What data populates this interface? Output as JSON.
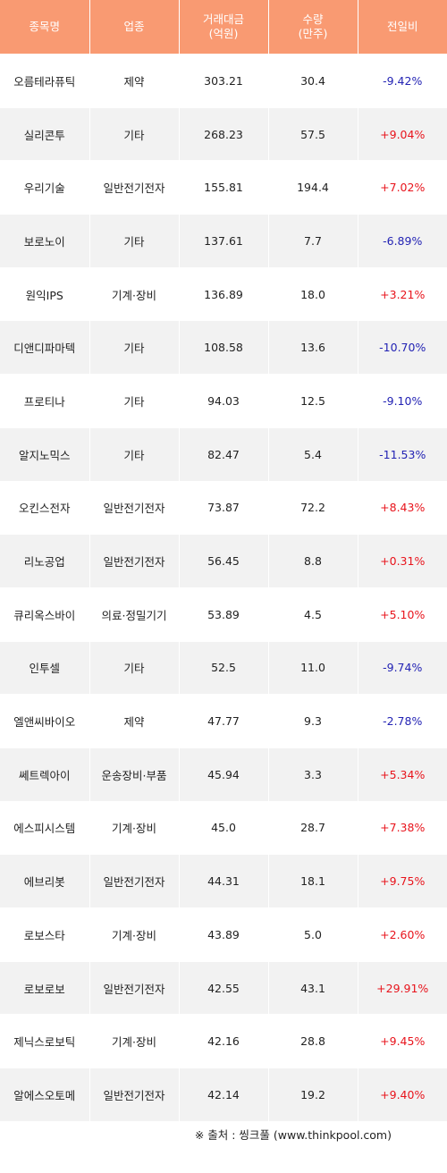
{
  "headers": {
    "name": "종목명",
    "sector": "업종",
    "amount_line1": "거래대금",
    "amount_line2": "(억원)",
    "volume_line1": "수량",
    "volume_line2": "(만주)",
    "change": "전일비"
  },
  "rows": [
    {
      "name": "오름테라퓨틱",
      "sector": "제약",
      "amount": "303.21",
      "volume": "30.4",
      "change": "-9.42%"
    },
    {
      "name": "실리콘투",
      "sector": "기타",
      "amount": "268.23",
      "volume": "57.5",
      "change": "+9.04%"
    },
    {
      "name": "우리기술",
      "sector": "일반전기전자",
      "amount": "155.81",
      "volume": "194.4",
      "change": "+7.02%"
    },
    {
      "name": "보로노이",
      "sector": "기타",
      "amount": "137.61",
      "volume": "7.7",
      "change": "-6.89%"
    },
    {
      "name": "원익IPS",
      "sector": "기계·장비",
      "amount": "136.89",
      "volume": "18.0",
      "change": "+3.21%"
    },
    {
      "name": "디앤디파마텍",
      "sector": "기타",
      "amount": "108.58",
      "volume": "13.6",
      "change": "-10.70%"
    },
    {
      "name": "프로티나",
      "sector": "기타",
      "amount": "94.03",
      "volume": "12.5",
      "change": "-9.10%"
    },
    {
      "name": "알지노믹스",
      "sector": "기타",
      "amount": "82.47",
      "volume": "5.4",
      "change": "-11.53%"
    },
    {
      "name": "오킨스전자",
      "sector": "일반전기전자",
      "amount": "73.87",
      "volume": "72.2",
      "change": "+8.43%"
    },
    {
      "name": "리노공업",
      "sector": "일반전기전자",
      "amount": "56.45",
      "volume": "8.8",
      "change": "+0.31%"
    },
    {
      "name": "큐리옥스바이",
      "sector": "의료·정밀기기",
      "amount": "53.89",
      "volume": "4.5",
      "change": "+5.10%"
    },
    {
      "name": "인투셀",
      "sector": "기타",
      "amount": "52.5",
      "volume": "11.0",
      "change": "-9.74%"
    },
    {
      "name": "엘앤씨바이오",
      "sector": "제약",
      "amount": "47.77",
      "volume": "9.3",
      "change": "-2.78%"
    },
    {
      "name": "쎄트렉아이",
      "sector": "운송장비·부품",
      "amount": "45.94",
      "volume": "3.3",
      "change": "+5.34%"
    },
    {
      "name": "에스피시스템",
      "sector": "기계·장비",
      "amount": "45.0",
      "volume": "28.7",
      "change": "+7.38%"
    },
    {
      "name": "에브리봇",
      "sector": "일반전기전자",
      "amount": "44.31",
      "volume": "18.1",
      "change": "+9.75%"
    },
    {
      "name": "로보스타",
      "sector": "기계·장비",
      "amount": "43.89",
      "volume": "5.0",
      "change": "+2.60%"
    },
    {
      "name": "로보로보",
      "sector": "일반전기전자",
      "amount": "42.55",
      "volume": "43.1",
      "change": "+29.91%"
    },
    {
      "name": "제닉스로보틱",
      "sector": "기계·장비",
      "amount": "42.16",
      "volume": "28.8",
      "change": "+9.45%"
    },
    {
      "name": "알에스오토메",
      "sector": "일반전기전자",
      "amount": "42.14",
      "volume": "19.2",
      "change": "+9.40%"
    }
  ],
  "colors": {
    "header_bg": "#f99a72",
    "up": "#e8141c",
    "down": "#2323b4",
    "row_alt": "#f2f2f2"
  },
  "source": "※ 출처 : 씽크풀 (www.thinkpool.com)"
}
